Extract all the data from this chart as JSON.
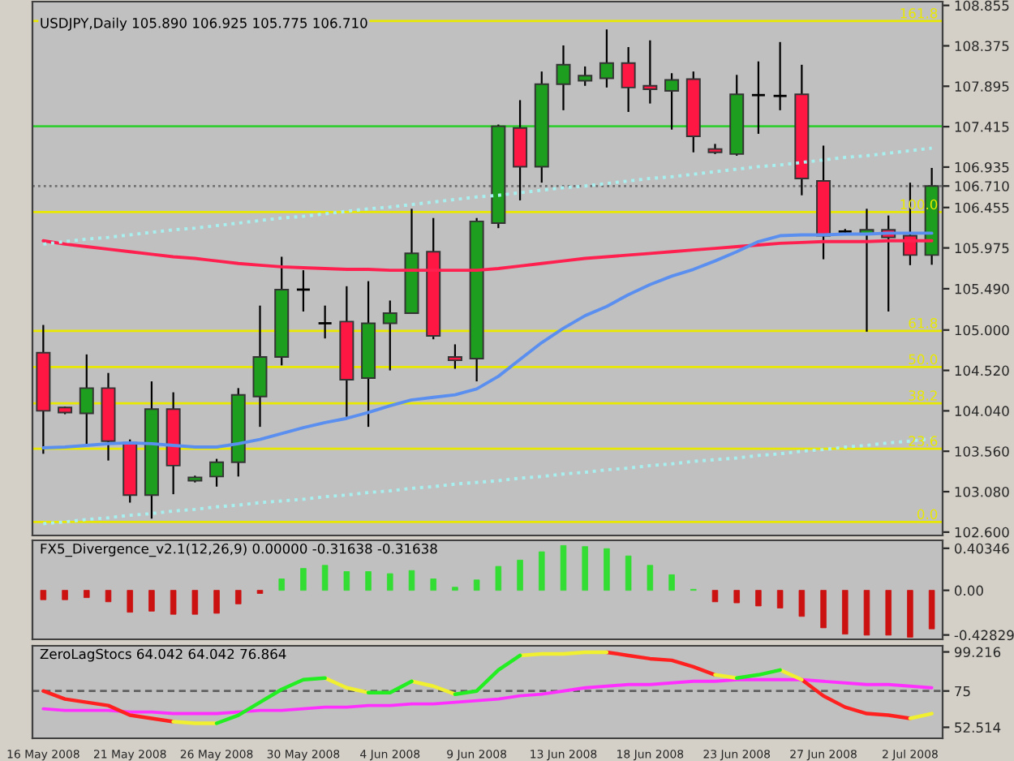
{
  "chart_data": [
    {
      "type": "candlestick",
      "title": "USDJPY,Daily 105.890 106.925 105.775 106.710",
      "categories": [
        null,
        null,
        null,
        null,
        null,
        null,
        null,
        null,
        null,
        null,
        null,
        null,
        null,
        null,
        null,
        null,
        null,
        null,
        null,
        null,
        null,
        null,
        null,
        null,
        null,
        null,
        null,
        null,
        null,
        null,
        null,
        null,
        null,
        null,
        null,
        null,
        null,
        null,
        null,
        null,
        null,
        null
      ],
      "ohlc": [
        [
          104.73,
          105.06,
          103.53,
          104.04
        ],
        [
          104.08,
          104.09,
          104.0,
          104.02
        ],
        [
          104.01,
          104.71,
          103.62,
          104.31
        ],
        [
          104.31,
          104.49,
          103.45,
          103.68
        ],
        [
          103.66,
          103.7,
          102.95,
          103.04
        ],
        [
          103.04,
          104.39,
          102.76,
          104.06
        ],
        [
          104.06,
          104.26,
          103.05,
          103.39
        ],
        [
          103.21,
          103.27,
          103.19,
          103.25
        ],
        [
          103.26,
          103.47,
          103.14,
          103.43
        ],
        [
          103.43,
          104.31,
          103.26,
          104.23
        ],
        [
          104.21,
          105.29,
          103.85,
          104.68
        ],
        [
          104.68,
          105.87,
          104.58,
          105.48
        ],
        [
          105.48,
          105.71,
          105.22,
          105.48
        ],
        [
          105.08,
          105.29,
          104.9,
          105.08
        ],
        [
          105.1,
          105.52,
          103.97,
          104.41
        ],
        [
          104.43,
          105.58,
          103.85,
          105.08
        ],
        [
          105.08,
          105.35,
          104.52,
          105.2
        ],
        [
          105.2,
          106.44,
          105.2,
          105.91
        ],
        [
          105.93,
          106.33,
          104.89,
          104.93
        ],
        [
          104.68,
          104.83,
          104.54,
          104.64
        ],
        [
          104.66,
          106.33,
          104.39,
          106.29
        ],
        [
          106.27,
          107.44,
          106.21,
          107.42
        ],
        [
          107.4,
          107.73,
          106.54,
          106.94
        ],
        [
          106.94,
          108.07,
          106.75,
          107.92
        ],
        [
          107.92,
          108.38,
          107.61,
          108.15
        ],
        [
          107.96,
          108.13,
          107.9,
          108.02
        ],
        [
          107.99,
          108.57,
          107.88,
          108.17
        ],
        [
          108.17,
          108.36,
          107.59,
          107.88
        ],
        [
          107.9,
          108.44,
          107.69,
          107.86
        ],
        [
          107.84,
          108.05,
          107.38,
          107.97
        ],
        [
          107.98,
          108.07,
          107.11,
          107.3
        ],
        [
          107.15,
          107.21,
          107.09,
          107.11
        ],
        [
          107.09,
          108.03,
          107.07,
          107.8
        ],
        [
          107.79,
          108.19,
          107.33,
          107.79
        ],
        [
          107.78,
          108.42,
          107.61,
          107.78
        ],
        [
          107.8,
          108.15,
          106.6,
          106.8
        ],
        [
          106.77,
          107.19,
          105.84,
          106.12
        ],
        [
          106.17,
          106.2,
          106.14,
          106.17
        ],
        [
          106.14,
          106.44,
          104.98,
          106.19
        ],
        [
          106.19,
          106.36,
          105.22,
          106.1
        ],
        [
          106.12,
          106.75,
          105.77,
          105.89
        ],
        [
          105.89,
          106.925,
          105.775,
          106.71
        ]
      ],
      "colors": [
        "#ff1744",
        "#ff1744",
        "#1e9e1e",
        "#ff1744",
        "#ff1744",
        "#1e9e1e",
        "#ff1744",
        "#1e9e1e",
        "#1e9e1e",
        "#1e9e1e",
        "#1e9e1e",
        "#1e9e1e",
        "#000000",
        "#000000",
        "#ff1744",
        "#1e9e1e",
        "#1e9e1e",
        "#1e9e1e",
        "#ff1744",
        "#ff1744",
        "#1e9e1e",
        "#1e9e1e",
        "#ff1744",
        "#1e9e1e",
        "#1e9e1e",
        "#1e9e1e",
        "#1e9e1e",
        "#ff1744",
        "#ff1744",
        "#1e9e1e",
        "#ff1744",
        "#ff1744",
        "#1e9e1e",
        "#000000",
        "#000000",
        "#ff1744",
        "#ff1744",
        "#000000",
        "#1e9e1e",
        "#ff1744",
        "#ff1744",
        "#1e9e1e"
      ],
      "series": [
        {
          "type": "line",
          "color": "#ff2050",
          "values": [
            106.06,
            106.02,
            105.99,
            105.96,
            105.93,
            105.9,
            105.87,
            105.85,
            105.82,
            105.79,
            105.77,
            105.75,
            105.74,
            105.73,
            105.72,
            105.72,
            105.71,
            105.71,
            105.71,
            105.71,
            105.71,
            105.73,
            105.76,
            105.79,
            105.82,
            105.85,
            105.87,
            105.89,
            105.91,
            105.93,
            105.95,
            105.97,
            105.99,
            106.01,
            106.03,
            106.04,
            106.05,
            106.05,
            106.05,
            106.06,
            106.06,
            106.06
          ]
        },
        {
          "type": "line",
          "color": "#5a8ff0",
          "values": [
            103.6,
            103.61,
            103.63,
            103.65,
            103.66,
            103.65,
            103.63,
            103.61,
            103.61,
            103.65,
            103.7,
            103.77,
            103.84,
            103.9,
            103.95,
            104.02,
            104.1,
            104.17,
            104.2,
            104.23,
            104.3,
            104.45,
            104.65,
            104.85,
            105.02,
            105.17,
            105.28,
            105.42,
            105.54,
            105.64,
            105.72,
            105.82,
            105.93,
            106.05,
            106.12,
            106.13,
            106.13,
            106.14,
            106.14,
            106.15,
            106.15,
            106.15
          ]
        },
        {
          "type": "line",
          "color": "#a8f0f0",
          "line_style": "dotted",
          "values": [
            106.02,
            106.05,
            106.08,
            106.1,
            106.13,
            106.16,
            106.19,
            106.21,
            106.24,
            106.27,
            106.3,
            106.33,
            106.35,
            106.38,
            106.41,
            106.44,
            106.46,
            106.49,
            106.52,
            106.55,
            106.58,
            106.6,
            106.63,
            106.66,
            106.69,
            106.71,
            106.74,
            106.77,
            106.8,
            106.82,
            106.85,
            106.88,
            106.91,
            106.94,
            106.96,
            106.99,
            107.02,
            107.05,
            107.07,
            107.1,
            107.13,
            107.16
          ]
        },
        {
          "type": "line",
          "color": "#a8f0f0",
          "line_style": "dotted",
          "values": [
            102.7,
            102.72,
            102.75,
            102.77,
            102.8,
            102.82,
            102.85,
            102.87,
            102.9,
            102.92,
            102.95,
            102.97,
            102.99,
            103.02,
            103.04,
            103.07,
            103.09,
            103.12,
            103.14,
            103.17,
            103.19,
            103.21,
            103.24,
            103.26,
            103.29,
            103.31,
            103.34,
            103.36,
            103.39,
            103.41,
            103.44,
            103.46,
            103.48,
            103.51,
            103.53,
            103.56,
            103.58,
            103.61,
            103.63,
            103.66,
            103.68,
            103.71
          ]
        }
      ],
      "ylim": [
        102.56,
        108.9
      ],
      "yticks": [
        108.855,
        108.375,
        107.895,
        107.415,
        106.935,
        {
          "value": 106.71,
          "label": "106.710"
        },
        106.455,
        105.975,
        {
          "value": 105.49,
          "label": "105.490"
        },
        {
          "value": 105.0,
          "label": "105.000"
        },
        {
          "value": 104.52,
          "label": "104.520"
        },
        {
          "value": 104.04,
          "label": "104.040"
        },
        {
          "value": 103.56,
          "label": "103.560"
        },
        {
          "value": 103.08,
          "label": "103.080"
        },
        {
          "value": 102.6,
          "label": "102.600"
        }
      ],
      "ref_lines": [
        {
          "axis": "y",
          "value": 108.67,
          "color": "#e8e800"
        },
        {
          "axis": "y",
          "value": 106.4,
          "color": "#e8e800"
        },
        {
          "axis": "y",
          "value": 104.99,
          "color": "#e8e800"
        },
        {
          "axis": "y",
          "value": 104.56,
          "color": "#e8e800"
        },
        {
          "axis": "y",
          "value": 104.13,
          "color": "#e8e800"
        },
        {
          "axis": "y",
          "value": 103.59,
          "color": "#e8e800"
        },
        {
          "axis": "y",
          "value": 102.72,
          "color": "#e8e800"
        },
        {
          "axis": "y",
          "value": 107.42,
          "color": "#33cc33"
        },
        {
          "axis": "y",
          "value": 106.71,
          "color": "#707070",
          "line_style": "dotted"
        }
      ],
      "annotations": [
        {
          "text": "161.8",
          "y": 108.67
        },
        {
          "text": "100.0",
          "y": 106.4
        },
        {
          "text": "61.8",
          "y": 104.99
        },
        {
          "text": "50.0",
          "y": 104.56
        },
        {
          "text": "38.2",
          "y": 104.13
        },
        {
          "text": "23.6",
          "y": 103.59
        },
        {
          "text": "0.0",
          "y": 102.72
        }
      ],
      "tick_labels": "y"
    },
    {
      "type": "bar",
      "title": "FX5_Divergence_v2.1(12,26,9) 0.00000 -0.31638 -0.31638",
      "categories": [
        null,
        null,
        null,
        null,
        null,
        null,
        null,
        null,
        null,
        null,
        null,
        null,
        null,
        null,
        null,
        null,
        null,
        null,
        null,
        null,
        null,
        null,
        null,
        null,
        null,
        null,
        null,
        null,
        null,
        null,
        null,
        null,
        null,
        null,
        null,
        null,
        null,
        null,
        null,
        null,
        null,
        null
      ],
      "values": [
        -0.09,
        -0.09,
        -0.07,
        -0.11,
        -0.21,
        -0.2,
        -0.23,
        -0.23,
        -0.22,
        -0.13,
        -0.03,
        0.11,
        0.21,
        0.24,
        0.18,
        0.18,
        0.16,
        0.19,
        0.11,
        0.03,
        0.1,
        0.23,
        0.29,
        0.37,
        0.43,
        0.42,
        0.4,
        0.33,
        0.24,
        0.15,
        0.01,
        -0.11,
        -0.12,
        -0.15,
        -0.17,
        -0.25,
        -0.36,
        -0.42,
        -0.43,
        -0.43,
        -0.45,
        -0.37
      ],
      "colors": [
        "#cc1111",
        "#cc1111",
        "#cc1111",
        "#cc1111",
        "#cc1111",
        "#cc1111",
        "#cc1111",
        "#cc1111",
        "#cc1111",
        "#cc1111",
        "#cc1111",
        "#33dd33",
        "#33dd33",
        "#33dd33",
        "#33dd33",
        "#33dd33",
        "#33dd33",
        "#33dd33",
        "#33dd33",
        "#33dd33",
        "#33dd33",
        "#33dd33",
        "#33dd33",
        "#33dd33",
        "#33dd33",
        "#33dd33",
        "#33dd33",
        "#33dd33",
        "#33dd33",
        "#33dd33",
        "#33dd33",
        "#cc1111",
        "#cc1111",
        "#cc1111",
        "#cc1111",
        "#cc1111",
        "#cc1111",
        "#cc1111",
        "#cc1111",
        "#cc1111",
        "#cc1111",
        "#cc1111"
      ],
      "ylim": [
        -0.47,
        0.48
      ],
      "yticks": [
        0.40346,
        {
          "value": 0,
          "label": "0.00"
        },
        -0.42829
      ],
      "tick_labels": "y"
    },
    {
      "type": "line",
      "title": "ZeroLagStocs 64.042 64.042 76.864",
      "categories": [
        "16 May 2008",
        null,
        null,
        null,
        "21 May 2008",
        null,
        null,
        null,
        "26 May 2008",
        null,
        null,
        null,
        "30 May 2008",
        null,
        null,
        null,
        "4 Jun 2008",
        null,
        null,
        null,
        "9 Jun 2008",
        null,
        null,
        null,
        "13 Jun 2008",
        null,
        null,
        null,
        "18 Jun 2008",
        null,
        null,
        null,
        "23 Jun 2008",
        null,
        null,
        null,
        "27 Jun 2008",
        null,
        null,
        null,
        "2 Jul 2008",
        null
      ],
      "series": [
        {
          "color": "#ff30ff",
          "values": [
            64,
            63,
            63,
            63,
            62,
            62,
            61,
            61,
            61,
            62,
            63,
            63,
            64,
            65,
            65,
            66,
            66,
            67,
            67,
            68,
            69,
            70,
            72,
            73,
            75,
            77,
            78,
            79,
            79,
            80,
            81,
            81,
            82,
            82,
            82,
            82,
            81,
            80,
            79,
            79,
            78,
            77
          ]
        },
        {
          "color": "#ff2020",
          "values": [
            75,
            70,
            68,
            66,
            60,
            58,
            56,
            null,
            null,
            null,
            null,
            null,
            null,
            null,
            null,
            null,
            null,
            null,
            null,
            null,
            null,
            null,
            null,
            null,
            null,
            null,
            99,
            97,
            95,
            94,
            90,
            85,
            null,
            null,
            null,
            82,
            72,
            65,
            61,
            60,
            58,
            null
          ]
        },
        {
          "color": "#f0f030",
          "values": [
            null,
            null,
            null,
            null,
            null,
            null,
            56,
            55,
            55,
            null,
            null,
            null,
            null,
            83,
            77,
            74,
            null,
            81,
            78,
            73,
            null,
            null,
            97,
            98,
            98,
            99,
            99,
            null,
            null,
            null,
            null,
            85,
            83,
            null,
            88,
            82,
            null,
            null,
            null,
            null,
            58,
            61
          ]
        },
        {
          "color": "#22ee22",
          "values": [
            null,
            null,
            null,
            null,
            null,
            null,
            null,
            null,
            55,
            60,
            68,
            76,
            82,
            83,
            null,
            74,
            74,
            81,
            null,
            73,
            75,
            88,
            97,
            null,
            null,
            null,
            null,
            null,
            null,
            null,
            null,
            null,
            83,
            85,
            88,
            null,
            null,
            null,
            null,
            null,
            null,
            null
          ]
        }
      ],
      "ylim": [
        45.7,
        103.0
      ],
      "yticks": [
        99.216,
        75,
        52.514
      ],
      "ref_lines": [
        {
          "axis": "y",
          "value": 75,
          "color": "#606060",
          "line_style": "dashed"
        }
      ]
    }
  ]
}
